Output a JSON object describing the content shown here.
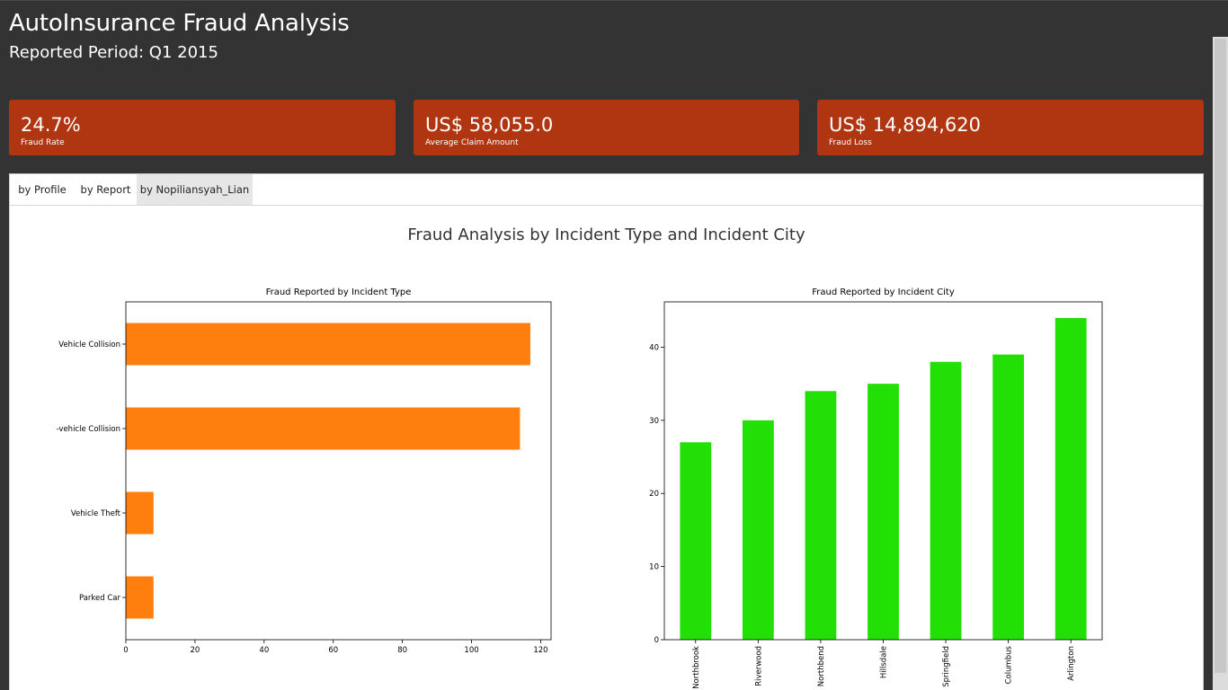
{
  "header": {
    "title": "AutoInsurance Fraud Analysis",
    "subtitle": "Reported Period: Q1 2015"
  },
  "kpis": [
    {
      "value": "24.7%",
      "label": "Fraud Rate"
    },
    {
      "value": "US$ 58,055.0",
      "label": "Average Claim Amount"
    },
    {
      "value": "US$ 14,894,620",
      "label": "Fraud Loss"
    }
  ],
  "tabs": [
    {
      "label": "by Profile",
      "active": false
    },
    {
      "label": "by Report",
      "active": false
    },
    {
      "label": "by Nopiliansyah_Lian",
      "active": true
    }
  ],
  "content": {
    "title": "Fraud Analysis by Incident Type and Incident City"
  },
  "colors": {
    "background": "#333333",
    "kpi_card": "#b03611",
    "bar_orange": "#ff7f0e",
    "bar_green": "#22e005"
  },
  "chart_data": [
    {
      "type": "bar",
      "orientation": "horizontal",
      "title": "Fraud Reported by Incident Type",
      "categories": [
        "Vehicle Collision",
        "-vehicle Collision",
        "Vehicle Theft",
        "Parked Car"
      ],
      "values": [
        117,
        114,
        8,
        8
      ],
      "xlim": [
        0,
        123
      ],
      "xticks": [
        0,
        20,
        40,
        60,
        80,
        100,
        120
      ],
      "color": "#ff7f0e"
    },
    {
      "type": "bar",
      "orientation": "vertical",
      "title": "Fraud Reported by Incident City",
      "categories": [
        "Northbrook",
        "Riverwood",
        "Northbend",
        "Hillsdale",
        "Springfield",
        "Columbus",
        "Arlington"
      ],
      "values": [
        27,
        30,
        34,
        35,
        38,
        39,
        44
      ],
      "ylim": [
        0,
        46.2
      ],
      "yticks": [
        0,
        10,
        20,
        30,
        40
      ],
      "color": "#22e005"
    }
  ]
}
